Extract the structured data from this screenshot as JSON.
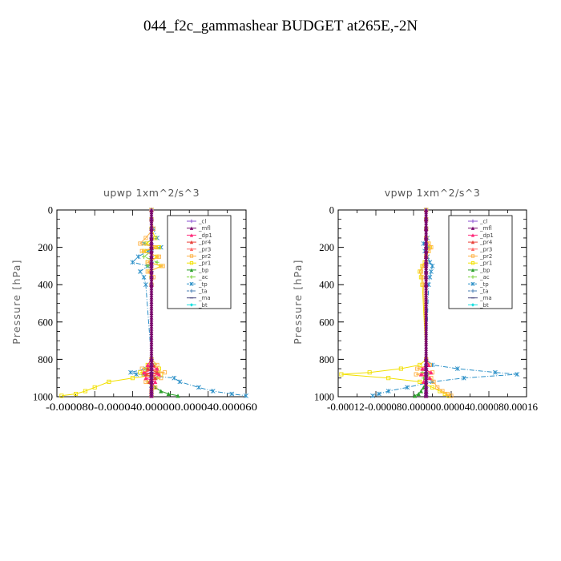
{
  "title": "044_f2c_gammashear  BUDGET at265E,-2N",
  "chart_data": [
    {
      "type": "line",
      "title": "upwp   1xm^2/s^3",
      "ylabel": "Pressure [hPa]",
      "ylim": [
        1000,
        0
      ],
      "xlim": [
        -0.0001,
        0.0001
      ],
      "yticks": [
        0,
        200,
        400,
        600,
        800,
        1000
      ],
      "xtick_labels_text": "-0.000080-0.000040.000000.000040.000060",
      "legend_position": "top-right",
      "levels": [
        0,
        50,
        100,
        150,
        180,
        200,
        220,
        250,
        280,
        300,
        330,
        360,
        400,
        800,
        830,
        850,
        870,
        880,
        900,
        920,
        950,
        970,
        985,
        995
      ],
      "series": [
        {
          "name": "_cl",
          "color": "#8a4fd0",
          "values": [
            0,
            0,
            0,
            0,
            0,
            0,
            0,
            0,
            0,
            0,
            0,
            0,
            0,
            0,
            0,
            0,
            0,
            0,
            0,
            0,
            0,
            0,
            0,
            0
          ]
        },
        {
          "name": "_mfl",
          "color": "#7a0a6e",
          "values": [
            0,
            0,
            0,
            0,
            0,
            0,
            0,
            0,
            0,
            0,
            0,
            0,
            0,
            0,
            0,
            0,
            0,
            0,
            0,
            0,
            0,
            0,
            0,
            0
          ]
        },
        {
          "name": "_dp1",
          "color": "#ff2a7a",
          "values": [
            0,
            0,
            0,
            0,
            0,
            0,
            0,
            0,
            0,
            0,
            0,
            0,
            0,
            0,
            -4e-06,
            6e-06,
            -8e-06,
            8e-06,
            -6e-06,
            4e-06,
            0,
            0,
            0,
            0
          ]
        },
        {
          "name": "_pr4",
          "color": "#e8413a",
          "values": [
            0,
            0,
            0,
            0,
            0,
            0,
            0,
            0,
            0,
            0,
            0,
            0,
            0,
            0,
            2e-06,
            -4e-06,
            6e-06,
            -6e-06,
            4e-06,
            -2e-06,
            0,
            0,
            0,
            0
          ]
        },
        {
          "name": "_pr3",
          "color": "#ff6a6a",
          "values": [
            0,
            0,
            0,
            0,
            0,
            0,
            0,
            0,
            0,
            0,
            0,
            0,
            0,
            0,
            0,
            0,
            0,
            0,
            0,
            0,
            0,
            0,
            0,
            0
          ]
        },
        {
          "name": "_pr2",
          "color": "#ffb347",
          "values": [
            0,
            0,
            2e-06,
            -6e-06,
            -1.2e-05,
            4e-06,
            -1e-05,
            8e-06,
            -4e-06,
            1.2e-05,
            -4e-06,
            2e-06,
            0,
            0,
            6e-06,
            -1e-05,
            1.4e-05,
            -8e-06,
            1e-05,
            -6e-06,
            4e-06,
            0,
            0,
            0
          ]
        },
        {
          "name": "_pr1",
          "color": "#f2e000",
          "values": [
            0,
            0,
            0,
            4e-06,
            -6e-06,
            8e-06,
            -8e-06,
            6e-06,
            -4e-06,
            1e-05,
            -2e-06,
            0,
            0,
            0,
            -4e-06,
            8e-06,
            -1.2e-05,
            1e-05,
            -2e-05,
            -4.5e-05,
            -6e-05,
            -7e-05,
            -8e-05,
            -9.5e-05
          ]
        },
        {
          "name": "_bp",
          "color": "#2ca02c",
          "values": [
            0,
            0,
            0,
            0,
            0,
            0,
            0,
            0,
            0,
            0,
            0,
            0,
            0,
            0,
            0,
            0,
            0,
            0,
            0,
            0,
            4e-06,
            1e-05,
            1.8e-05,
            2.8e-05
          ]
        },
        {
          "name": "_ac",
          "color": "#7bd23c",
          "values": [
            0,
            0,
            0,
            0,
            0,
            0,
            0,
            -8e-06,
            6e-06,
            -4e-06,
            0,
            0,
            0,
            0,
            4e-06,
            -6e-06,
            8e-06,
            -1e-05,
            6e-06,
            -4e-06,
            0,
            0,
            0,
            0
          ]
        },
        {
          "name": "_tp",
          "color": "#2a8fc7",
          "values": [
            0,
            0,
            2e-06,
            6e-06,
            -8e-06,
            1e-05,
            -4e-06,
            -1.4e-05,
            -2e-05,
            -4e-06,
            -1.2e-05,
            -8e-06,
            -6e-06,
            0,
            0,
            -6e-06,
            -2.2e-05,
            -1.6e-05,
            2.4e-05,
            3e-05,
            5e-05,
            6.5e-05,
            8.5e-05,
            0.0001
          ]
        },
        {
          "name": "_ta",
          "color": "#4a7fb5",
          "values": [
            0,
            0,
            0,
            0,
            0,
            0,
            0,
            0,
            0,
            0,
            0,
            0,
            0,
            0,
            0,
            0,
            0,
            0,
            0,
            0,
            0,
            0,
            0,
            0
          ]
        },
        {
          "name": "_ma",
          "color": "#4a4a80",
          "values": [
            0,
            0,
            0,
            0,
            0,
            0,
            0,
            0,
            0,
            0,
            0,
            0,
            0,
            0,
            0,
            0,
            0,
            0,
            0,
            0,
            0,
            0,
            0,
            0
          ]
        },
        {
          "name": "_bt",
          "color": "#19e0e0",
          "values": [
            0,
            0,
            0,
            0,
            0,
            0,
            0,
            0,
            0,
            0,
            0,
            0,
            0,
            0,
            0,
            0,
            0,
            0,
            0,
            0,
            0,
            0,
            0,
            0
          ]
        }
      ]
    },
    {
      "type": "line",
      "title": "vpwp   1xm^2/s^3",
      "ylabel": "Pressure [hPa]",
      "ylim": [
        1000,
        0
      ],
      "xlim": [
        -0.00014,
        0.00016
      ],
      "yticks": [
        0,
        200,
        400,
        600,
        800,
        1000
      ],
      "xtick_labels_text": "-0.00012-0.000080.000000.000040.000080.00016",
      "legend_position": "top-right",
      "levels": [
        0,
        50,
        100,
        150,
        180,
        200,
        220,
        250,
        280,
        300,
        330,
        360,
        400,
        800,
        830,
        850,
        870,
        880,
        900,
        920,
        950,
        970,
        985,
        995
      ],
      "series": [
        {
          "name": "_cl",
          "color": "#8a4fd0",
          "values": [
            0,
            0,
            0,
            0,
            0,
            0,
            0,
            0,
            0,
            0,
            0,
            0,
            0,
            0,
            0,
            0,
            0,
            0,
            0,
            0,
            0,
            0,
            0,
            0
          ]
        },
        {
          "name": "_mfl",
          "color": "#7a0a6e",
          "values": [
            0,
            0,
            0,
            0,
            0,
            0,
            0,
            0,
            0,
            0,
            0,
            0,
            0,
            0,
            0,
            0,
            0,
            0,
            0,
            0,
            0,
            0,
            0,
            0
          ]
        },
        {
          "name": "_dp1",
          "color": "#ff2a7a",
          "values": [
            0,
            0,
            0,
            0,
            0,
            0,
            0,
            0,
            0,
            0,
            0,
            0,
            0,
            0,
            4e-06,
            -6e-06,
            8e-06,
            -8e-06,
            6e-06,
            -4e-06,
            0,
            0,
            0,
            0
          ]
        },
        {
          "name": "_pr4",
          "color": "#e8413a",
          "values": [
            0,
            0,
            0,
            0,
            0,
            0,
            0,
            0,
            0,
            0,
            0,
            0,
            0,
            0,
            0,
            0,
            0,
            0,
            0,
            0,
            0,
            0,
            0,
            0
          ]
        },
        {
          "name": "_pr3",
          "color": "#ff6a6a",
          "values": [
            0,
            0,
            0,
            0,
            0,
            0,
            0,
            0,
            0,
            0,
            0,
            0,
            0,
            0,
            0,
            0,
            0,
            0,
            0,
            0,
            0,
            0,
            0,
            0
          ]
        },
        {
          "name": "_pr2",
          "color": "#ffb347",
          "values": [
            0,
            0,
            0,
            0,
            4e-06,
            8e-06,
            4e-06,
            0,
            0,
            -4e-06,
            -8e-06,
            -6e-06,
            -4e-06,
            0,
            6e-06,
            -1.4e-05,
            1e-05,
            -1.6e-05,
            8e-06,
            1.2e-05,
            1.8e-05,
            2.6e-05,
            3.4e-05,
            4e-05
          ]
        },
        {
          "name": "_pr1",
          "color": "#f2e000",
          "values": [
            0,
            0,
            0,
            0,
            4e-06,
            6e-06,
            4e-06,
            0,
            -2e-06,
            -6e-06,
            -1e-05,
            -8e-06,
            -6e-06,
            0,
            -1e-05,
            -4e-05,
            -9e-05,
            -0.000135,
            -6e-05,
            -1e-05,
            1e-05,
            2.2e-05,
            3e-05,
            3.6e-05
          ]
        },
        {
          "name": "_bp",
          "color": "#2ca02c",
          "values": [
            0,
            0,
            0,
            0,
            0,
            0,
            0,
            0,
            0,
            0,
            0,
            0,
            0,
            0,
            0,
            0,
            0,
            0,
            0,
            0,
            -4e-06,
            -8e-06,
            -1.2e-05,
            -1.8e-05
          ]
        },
        {
          "name": "_ac",
          "color": "#7bd23c",
          "values": [
            0,
            0,
            0,
            0,
            0,
            0,
            0,
            0,
            0,
            0,
            0,
            0,
            0,
            0,
            4e-06,
            0,
            -6e-06,
            4e-06,
            -4e-06,
            0,
            0,
            0,
            0,
            0
          ]
        },
        {
          "name": "_tp",
          "color": "#2a8fc7",
          "values": [
            0,
            0,
            0,
            2e-06,
            -4e-06,
            4e-06,
            -2e-06,
            2e-06,
            6e-06,
            1e-05,
            8e-06,
            6e-06,
            4e-06,
            0,
            1e-05,
            5e-05,
            0.00011,
            0.000145,
            6e-05,
            1e-05,
            -3e-05,
            -6e-05,
            -7.5e-05,
            -8.5e-05
          ]
        },
        {
          "name": "_ta",
          "color": "#4a7fb5",
          "values": [
            0,
            0,
            0,
            0,
            0,
            0,
            0,
            0,
            0,
            0,
            0,
            0,
            0,
            0,
            0,
            0,
            0,
            0,
            0,
            0,
            0,
            0,
            0,
            0
          ]
        },
        {
          "name": "_ma",
          "color": "#4a4a80",
          "values": [
            0,
            0,
            0,
            0,
            0,
            0,
            0,
            0,
            0,
            0,
            0,
            0,
            0,
            0,
            0,
            0,
            0,
            0,
            0,
            0,
            0,
            0,
            0,
            0
          ]
        },
        {
          "name": "_bt",
          "color": "#19e0e0",
          "values": [
            0,
            0,
            0,
            0,
            0,
            0,
            0,
            0,
            0,
            0,
            0,
            0,
            0,
            0,
            0,
            0,
            0,
            0,
            0,
            0,
            0,
            0,
            0,
            0
          ]
        }
      ]
    }
  ]
}
